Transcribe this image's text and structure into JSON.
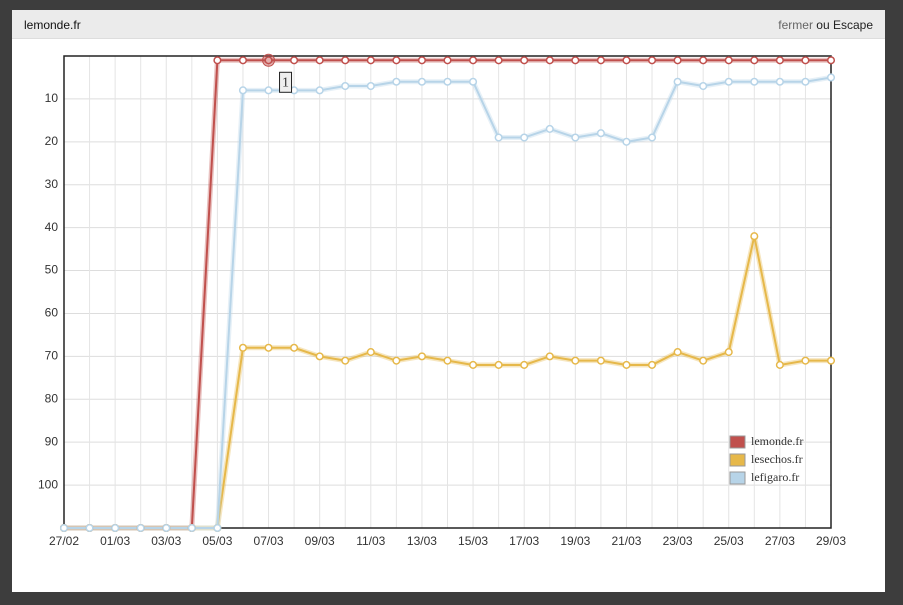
{
  "header": {
    "title": "lemonde.fr",
    "close": "fermer",
    "close_rest": "ou Escape"
  },
  "chart_data": {
    "type": "line",
    "categories": [
      "27/02",
      null,
      "01/03",
      null,
      "03/03",
      null,
      "05/03",
      null,
      "07/03",
      null,
      "09/03",
      null,
      "11/03",
      null,
      "13/03",
      null,
      "15/03",
      null,
      "17/03",
      null,
      "19/03",
      null,
      "21/03",
      null,
      "23/03",
      null,
      "25/03",
      null,
      "27/03",
      null,
      "29/03"
    ],
    "series": [
      {
        "name": "lemonde.fr",
        "color": "#c0504d",
        "values": [
          110,
          110,
          110,
          110,
          110,
          110,
          1,
          1,
          1,
          1,
          1,
          1,
          1,
          1,
          1,
          1,
          1,
          1,
          1,
          1,
          1,
          1,
          1,
          1,
          1,
          1,
          1,
          1,
          1,
          1,
          1
        ]
      },
      {
        "name": "lesechos.fr",
        "color": "#e6b84a",
        "values": [
          110,
          110,
          110,
          110,
          110,
          110,
          110,
          68,
          68,
          68,
          70,
          71,
          69,
          71,
          70,
          71,
          72,
          72,
          72,
          70,
          71,
          71,
          72,
          72,
          69,
          71,
          69,
          42,
          72,
          71,
          71
        ]
      },
      {
        "name": "lefigaro.fr",
        "color": "#b7d4e8",
        "values": [
          110,
          110,
          110,
          110,
          110,
          110,
          110,
          8,
          8,
          8,
          8,
          7,
          7,
          6,
          6,
          6,
          6,
          19,
          19,
          17,
          19,
          18,
          20,
          19,
          6,
          7,
          6,
          6,
          6,
          6,
          5
        ]
      }
    ],
    "ylim": [
      0,
      110
    ],
    "yinverted": true,
    "yticks": [
      10,
      20,
      30,
      40,
      50,
      60,
      70,
      80,
      90,
      100
    ],
    "grid": true,
    "legend": "lower right",
    "annotation": "1"
  }
}
